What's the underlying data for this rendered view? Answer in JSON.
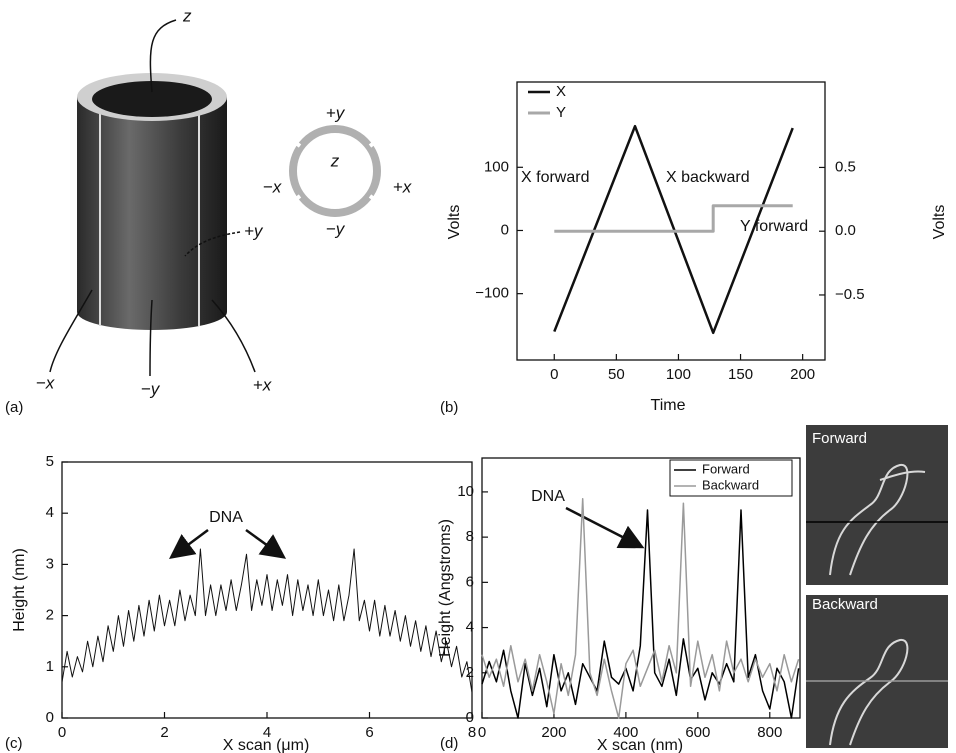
{
  "panel_labels": [
    "(a)",
    "(b)",
    "(c)",
    "(d)"
  ],
  "diagram": {
    "cylinder_labels": [
      "z",
      "+y",
      "−x",
      "−y",
      "+x"
    ],
    "ring_labels": [
      "+y",
      "−x",
      "z",
      "+x",
      "−y"
    ]
  },
  "afm_images": {
    "labels": [
      "Forward",
      "Backward"
    ]
  },
  "chart_data": [
    {
      "type": "line",
      "x_label": "Time",
      "y_label": "Volts",
      "y2_label": "Volts",
      "xlim": [
        -30,
        218
      ],
      "xticks": [
        0,
        50,
        100,
        150,
        200
      ],
      "ylim": [
        -205,
        235
      ],
      "yticks": [
        {
          "value": -100,
          "label": "−100"
        },
        0,
        100
      ],
      "y2lim": [
        -1.01,
        1.17
      ],
      "y2ticks": [
        {
          "value": -0.5,
          "label": "−0.5"
        },
        {
          "value": 0,
          "label": "0.0"
        },
        0.5
      ],
      "legend": "upper left",
      "annotations": [
        "X forward",
        "X backward",
        "Y forward"
      ],
      "series": [
        {
          "name": "X",
          "color": "#111111",
          "x": [
            0,
            65,
            128,
            192
          ],
          "values": [
            -160,
            165,
            -162,
            162
          ]
        },
        {
          "name": "Y",
          "color": "#a8a8a8",
          "axis": "y2",
          "x": [
            0,
            128,
            128,
            192
          ],
          "values": [
            0,
            0,
            0.2,
            0.2
          ]
        }
      ]
    },
    {
      "type": "line",
      "x_label": "X scan (μm)",
      "y_label": "Height (nm)",
      "xlim": [
        0,
        8
      ],
      "xticks": [
        0,
        2,
        4,
        6,
        8
      ],
      "ylim": [
        0,
        5
      ],
      "yticks": [
        0,
        1,
        2,
        3,
        4,
        5
      ],
      "annotations": [
        "DNA"
      ],
      "x": [
        0,
        0.1,
        0.2,
        0.3,
        0.4,
        0.5,
        0.6,
        0.7,
        0.8,
        0.9,
        1.0,
        1.1,
        1.2,
        1.3,
        1.4,
        1.5,
        1.6,
        1.7,
        1.8,
        1.9,
        2.0,
        2.1,
        2.2,
        2.3,
        2.4,
        2.5,
        2.6,
        2.7,
        2.8,
        2.9,
        3.0,
        3.1,
        3.2,
        3.3,
        3.4,
        3.5,
        3.6,
        3.7,
        3.8,
        3.9,
        4.0,
        4.1,
        4.2,
        4.3,
        4.4,
        4.5,
        4.6,
        4.7,
        4.8,
        4.9,
        5.0,
        5.1,
        5.2,
        5.3,
        5.4,
        5.5,
        5.6,
        5.7,
        5.8,
        5.9,
        6.0,
        6.1,
        6.2,
        6.3,
        6.4,
        6.5,
        6.6,
        6.7,
        6.8,
        6.9,
        7.0,
        7.1,
        7.2,
        7.3,
        7.4,
        7.5,
        7.6,
        7.7,
        7.8,
        7.9,
        8.0
      ],
      "series": [
        {
          "color": "#111111",
          "values": [
            0.7,
            1.3,
            0.8,
            1.2,
            0.9,
            1.5,
            1.0,
            1.6,
            1.1,
            1.8,
            1.3,
            2.0,
            1.4,
            2.1,
            1.5,
            2.2,
            1.6,
            2.3,
            1.7,
            2.4,
            1.8,
            2.3,
            1.8,
            2.5,
            1.9,
            2.4,
            2.0,
            3.3,
            2.0,
            2.6,
            2.0,
            2.6,
            2.1,
            2.7,
            2.1,
            2.6,
            3.2,
            2.1,
            2.7,
            2.2,
            2.8,
            2.1,
            2.7,
            2.2,
            2.8,
            2.0,
            2.7,
            2.1,
            2.6,
            2.0,
            2.7,
            2.0,
            2.5,
            1.9,
            2.6,
            1.9,
            2.4,
            3.3,
            1.9,
            2.3,
            1.7,
            2.3,
            1.6,
            2.2,
            1.6,
            2.1,
            1.5,
            2.0,
            1.4,
            1.9,
            1.3,
            1.8,
            1.2,
            1.7,
            1.1,
            1.5,
            1.0,
            1.4,
            0.8,
            1.1,
            0.5
          ]
        }
      ]
    },
    {
      "type": "line",
      "x_label": "X scan (nm)",
      "y_label": "Height (Angstroms)",
      "xlim": [
        0,
        884
      ],
      "xticks": [
        0,
        200,
        400,
        600,
        800
      ],
      "ylim": [
        0,
        11.5
      ],
      "yticks": [
        0,
        2,
        4,
        6,
        8,
        10
      ],
      "legend": "upper right",
      "annotations": [
        "DNA"
      ],
      "x": [
        0,
        20,
        40,
        60,
        80,
        100,
        120,
        140,
        160,
        180,
        200,
        220,
        240,
        260,
        280,
        300,
        320,
        340,
        360,
        380,
        400,
        420,
        440,
        460,
        480,
        500,
        520,
        540,
        560,
        580,
        600,
        620,
        640,
        660,
        680,
        700,
        720,
        740,
        760,
        780,
        800,
        820,
        840,
        860,
        880
      ],
      "series": [
        {
          "name": "Forward",
          "color": "#000000",
          "values": [
            1.5,
            2.5,
            1.6,
            3.0,
            1.2,
            0.0,
            2.4,
            1.0,
            2.2,
            0.5,
            2.8,
            1.2,
            2.0,
            0.6,
            2.4,
            1.8,
            1.2,
            3.4,
            1.8,
            1.5,
            2.2,
            1.2,
            3.2,
            9.2,
            2.0,
            1.4,
            2.6,
            1.0,
            3.5,
            1.7,
            2.2,
            0.8,
            2.0,
            1.5,
            2.4,
            1.6,
            9.2,
            1.8,
            2.8,
            1.2,
            0.4,
            2.2,
            1.6,
            0.0,
            2.2
          ]
        },
        {
          "name": "Backward",
          "color": "#9a9a9a",
          "values": [
            2.8,
            1.8,
            2.6,
            1.4,
            3.2,
            1.6,
            2.6,
            1.2,
            2.8,
            1.6,
            0.2,
            2.4,
            1.0,
            2.8,
            9.7,
            2.0,
            1.0,
            2.6,
            1.2,
            0.0,
            2.4,
            3.0,
            1.4,
            2.2,
            3.0,
            1.6,
            3.2,
            2.0,
            9.5,
            1.4,
            3.4,
            1.8,
            2.8,
            1.2,
            3.4,
            2.0,
            2.6,
            1.6,
            2.6,
            1.8,
            2.4,
            1.2,
            2.8,
            1.6,
            2.6
          ]
        }
      ]
    }
  ]
}
